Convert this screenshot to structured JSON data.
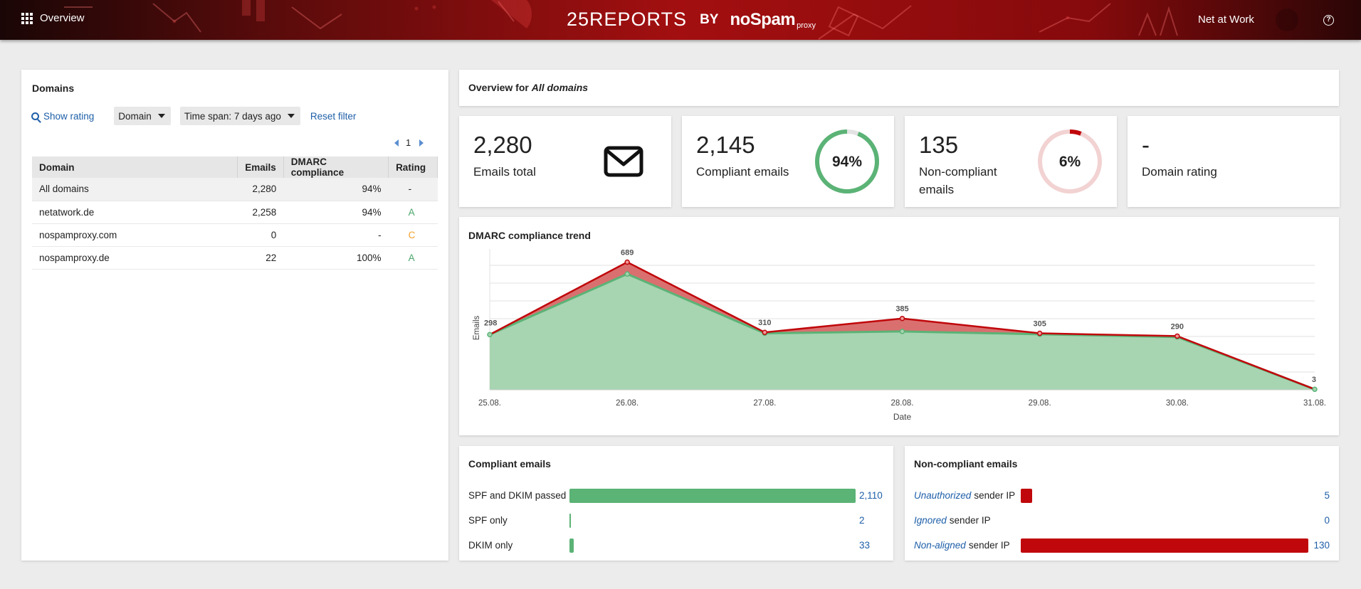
{
  "header": {
    "nav_label": "Overview",
    "nav_icon": "apps-grid-icon",
    "logo": {
      "reports": "25REPORTS",
      "by": "BY",
      "nospam": "noSpam",
      "proxy": "proxy"
    },
    "user_name": "Net at Work",
    "help_icon": "help-circle-icon",
    "help_glyph": "?"
  },
  "domains_panel": {
    "title": "Domains",
    "show_rating": "Show rating",
    "domain_select": "Domain",
    "timespan_select": "Time span: 7 days ago",
    "reset_filter": "Reset filter",
    "page": "1",
    "columns": [
      "Domain",
      "Emails",
      "DMARC compliance",
      "Rating"
    ],
    "rows": [
      {
        "domain": "All domains",
        "emails": "2,280",
        "compliance": "94%",
        "rating": "-",
        "rating_color": "#222222"
      },
      {
        "domain": "netatwork.de",
        "emails": "2,258",
        "compliance": "94%",
        "rating": "A",
        "rating_color": "#4aa56a"
      },
      {
        "domain": "nospamproxy.com",
        "emails": "0",
        "compliance": "-",
        "rating": "C",
        "rating_color": "#f0a030"
      },
      {
        "domain": "nospamproxy.de",
        "emails": "22",
        "compliance": "100%",
        "rating": "A",
        "rating_color": "#4aa56a"
      }
    ]
  },
  "overview": {
    "title_prefix": "Overview for",
    "title_scope": "All domains"
  },
  "kpis": {
    "total": {
      "value": "2,280",
      "label": "Emails total",
      "icon": "envelope-icon"
    },
    "compliant": {
      "value": "2,145",
      "label": "Compliant emails",
      "percent_label": "94%",
      "percent": 94,
      "color": "#5bb376"
    },
    "noncompliant": {
      "value": "135",
      "label_line1": "Non-compliant",
      "label_line2": "emails",
      "percent_label": "6%",
      "percent": 6,
      "color": "#c0070b"
    },
    "rating": {
      "value": "-",
      "label": "Domain rating"
    }
  },
  "trend": {
    "title": "DMARC compliance trend"
  },
  "chart_data": {
    "type": "area",
    "title": "DMARC compliance trend",
    "xlabel": "Date",
    "ylabel": "Emails",
    "categories": [
      "25.08.",
      "26.08.",
      "27.08.",
      "28.08.",
      "29.08.",
      "30.08.",
      "31.08."
    ],
    "ylim": [
      0,
      760
    ],
    "grid": true,
    "series": [
      {
        "role": "total",
        "values": [
          298,
          689,
          310,
          385,
          305,
          290,
          3
        ],
        "color": "#c0070b"
      },
      {
        "role": "compliant",
        "values": [
          298,
          625,
          305,
          315,
          300,
          285,
          3
        ],
        "color": "#5bb376"
      }
    ],
    "data_labels": [
      "298",
      "689",
      "310",
      "385",
      "305",
      "290",
      "3"
    ]
  },
  "compliant_breakdown": {
    "title": "Compliant emails",
    "max": 2110,
    "color": "#5bb376",
    "items": [
      {
        "label": "SPF and DKIM passed",
        "value": 2110,
        "display": "2,110"
      },
      {
        "label": "SPF only",
        "value": 2,
        "display": "2"
      },
      {
        "label": "DKIM only",
        "value": 33,
        "display": "33"
      }
    ]
  },
  "noncompliant_breakdown": {
    "title": "Non-compliant emails",
    "max": 130,
    "color": "#c0070b",
    "items": [
      {
        "emph": "Unauthorized",
        "rest": "sender IP",
        "value": 5,
        "display": "5"
      },
      {
        "emph": "Ignored",
        "rest": "sender IP",
        "value": 0,
        "display": "0"
      },
      {
        "emph": "Non-aligned",
        "rest": "sender IP",
        "value": 130,
        "display": "130"
      }
    ]
  }
}
